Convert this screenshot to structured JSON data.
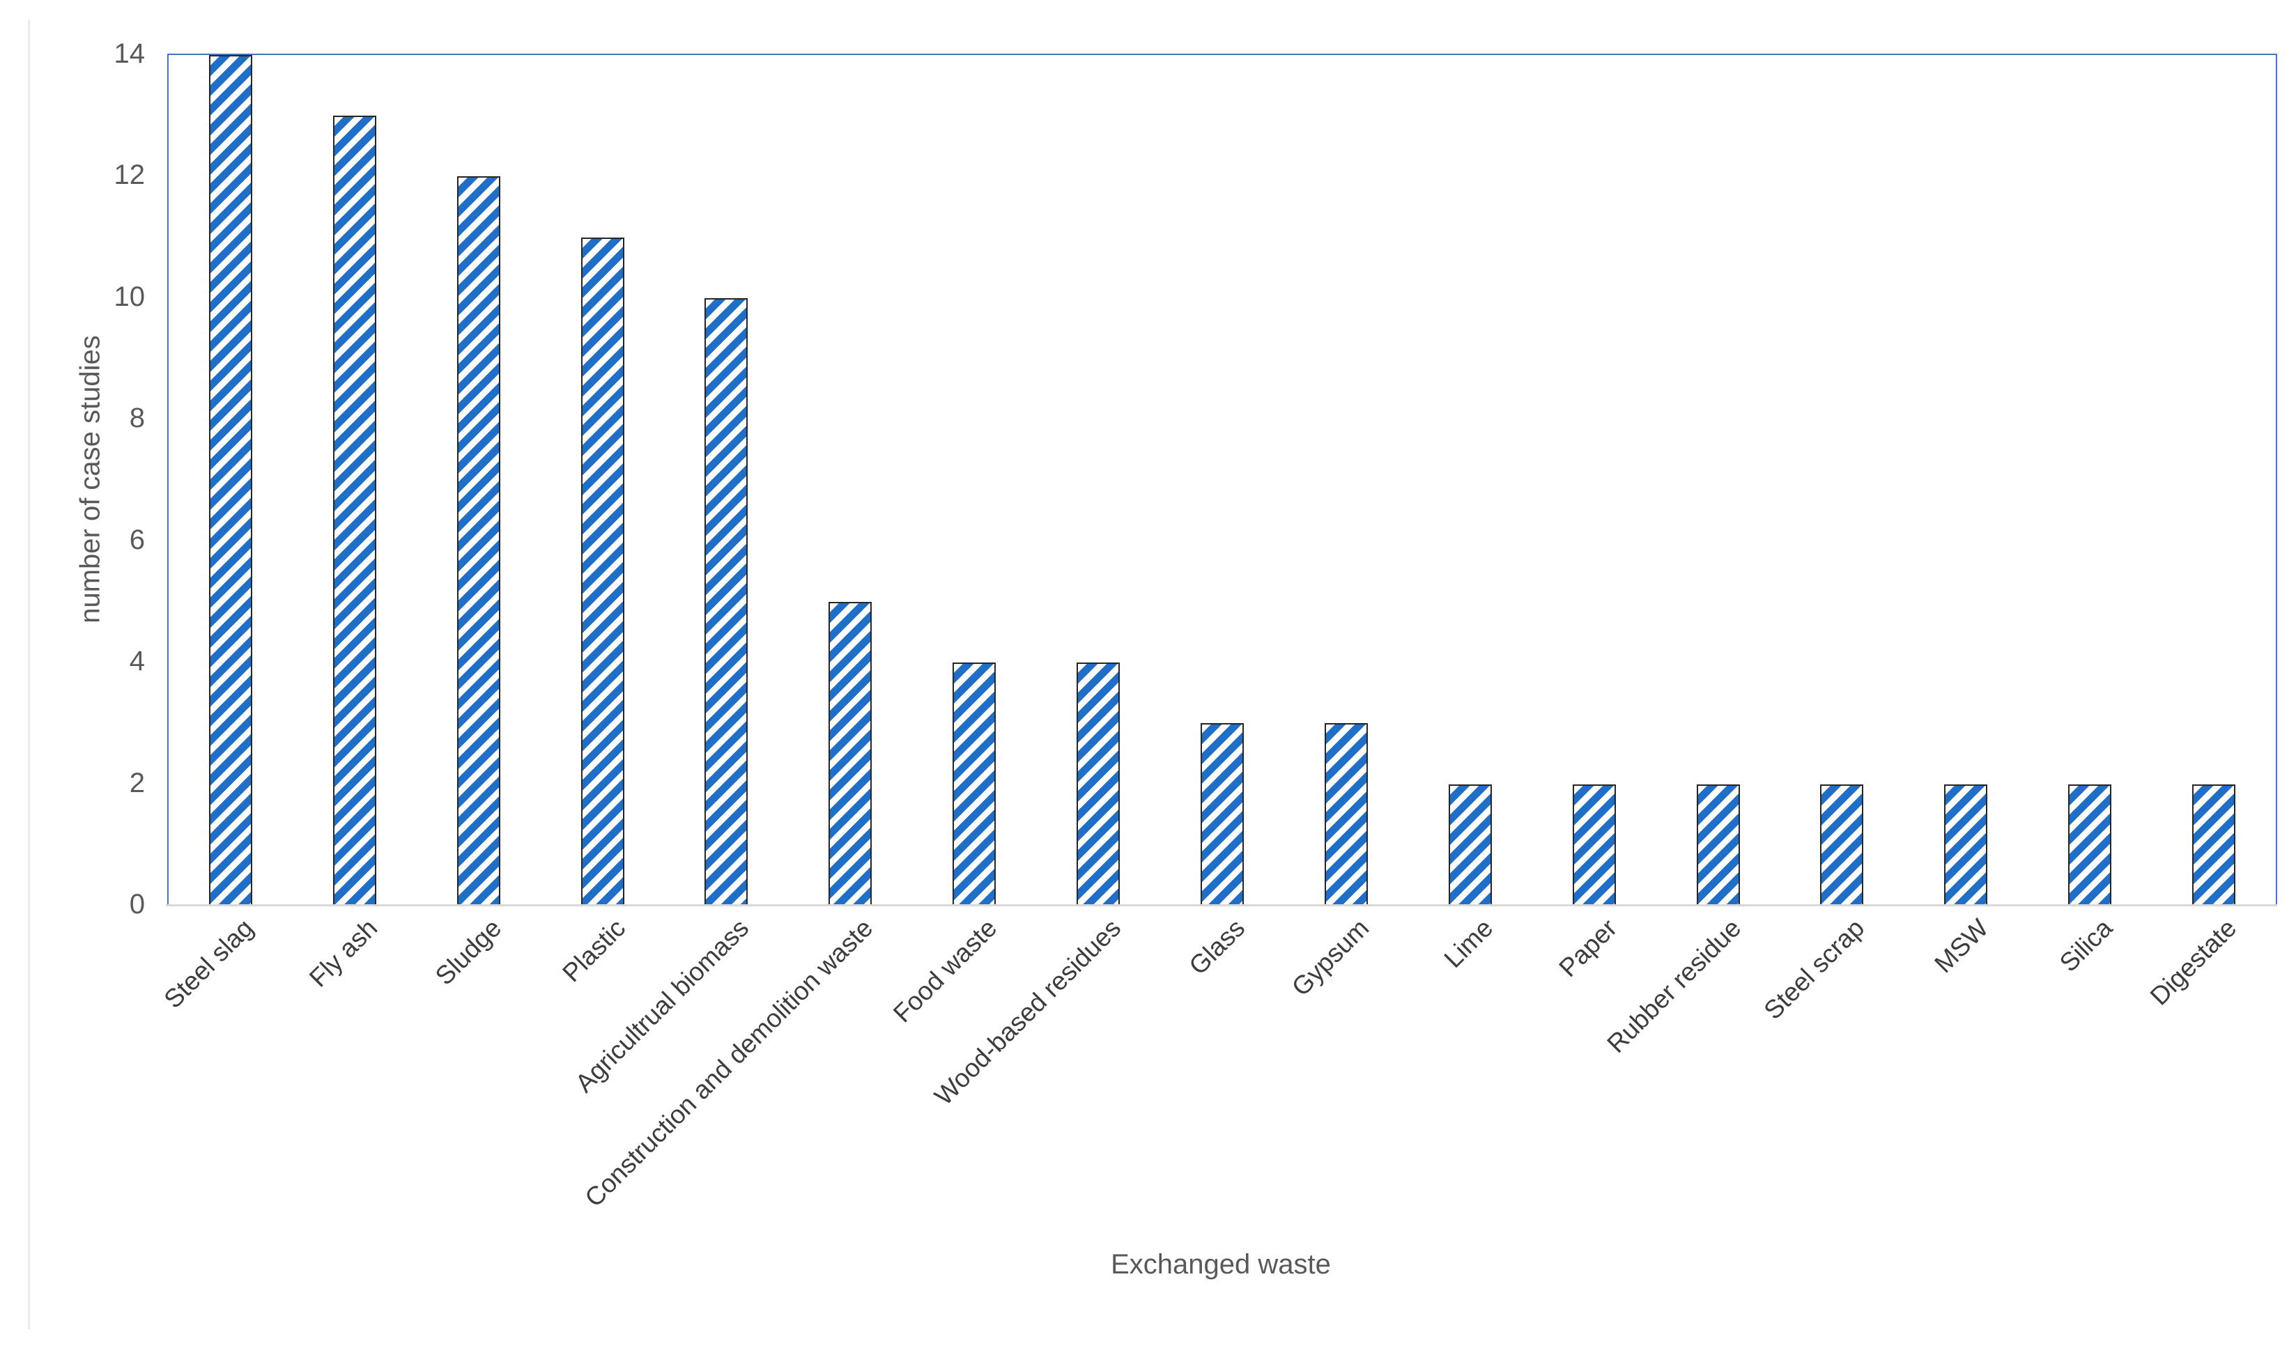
{
  "chart_data": {
    "type": "bar",
    "title": "",
    "xlabel": "Exchanged waste",
    "ylabel": "number of case studies",
    "categories": [
      "Steel slag",
      "Fly ash",
      "Sludge",
      "Plastic",
      "Agricultrual biomass",
      "Construction and demolition waste",
      "Food waste",
      "Wood-based residues",
      "Glass",
      "Gypsum",
      "Lime",
      "Paper",
      "Rubber residue",
      "Steel scrap",
      "MSW",
      "Silica",
      "Digestate"
    ],
    "values": [
      14,
      13,
      12,
      11,
      10,
      5,
      4,
      4,
      3,
      3,
      2,
      2,
      2,
      2,
      2,
      2,
      2
    ],
    "ylim": [
      0,
      14
    ],
    "yticks": [
      0,
      2,
      4,
      6,
      8,
      10,
      12,
      14
    ],
    "grid": false,
    "legend": false,
    "bar_fill": "diagonal-stripe-pattern",
    "colors": {
      "stripe": "#1F6FC9",
      "bar_border": "#262626",
      "plot_border": "#4472C4",
      "axis_line": "#D9D9D9",
      "tick_label": "#595959",
      "category_label": "#3D3D3D"
    }
  }
}
